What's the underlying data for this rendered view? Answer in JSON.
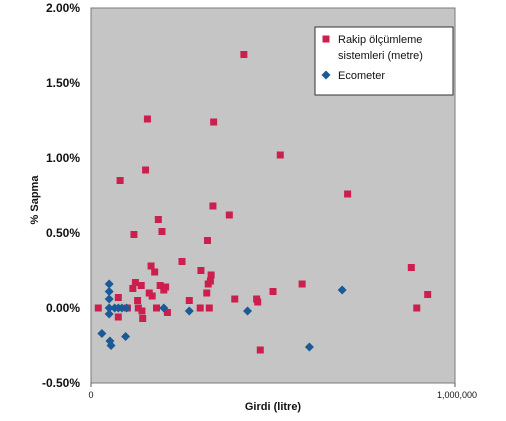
{
  "chart_data": {
    "type": "scatter",
    "title": "",
    "xlabel": "Girdi (litre)",
    "ylabel": "% Sapma",
    "xlim": [
      0,
      1000000
    ],
    "ylim": [
      -0.5,
      2.0
    ],
    "x_ticks": [
      {
        "value": 0,
        "label": "0"
      },
      {
        "value": 1000000,
        "label": "1,000,000"
      }
    ],
    "y_ticks": [
      {
        "value": 2.0,
        "label": "2.00%"
      },
      {
        "value": 1.5,
        "label": "1.50%"
      },
      {
        "value": 1.0,
        "label": "1.00%"
      },
      {
        "value": 0.5,
        "label": "0.50%"
      },
      {
        "value": 0.0,
        "label": "0.00%"
      },
      {
        "value": -0.5,
        "label": "-0.50%"
      }
    ],
    "grid": false,
    "plot_background": "#c5c5c5",
    "legend": {
      "position": "top-right"
    },
    "series": [
      {
        "name": "Rakip ölçümleme sistemleri (metre)",
        "legend_lines": [
          "Rakip ölçümleme",
          "sistemleri (metre)"
        ],
        "marker": "square",
        "color": "#cc1f4d",
        "points": [
          [
            20000,
            0.0
          ],
          [
            75000,
            0.07
          ],
          [
            80000,
            0.85
          ],
          [
            75000,
            -0.06
          ],
          [
            100000,
            0.0
          ],
          [
            115000,
            0.13
          ],
          [
            118000,
            0.49
          ],
          [
            122000,
            0.17
          ],
          [
            128000,
            0.05
          ],
          [
            130000,
            0.0
          ],
          [
            138000,
            0.15
          ],
          [
            140000,
            -0.02
          ],
          [
            142000,
            -0.07
          ],
          [
            150000,
            0.92
          ],
          [
            155000,
            1.26
          ],
          [
            160000,
            0.1
          ],
          [
            165000,
            0.28
          ],
          [
            168000,
            0.08
          ],
          [
            175000,
            0.24
          ],
          [
            180000,
            0.0
          ],
          [
            185000,
            0.59
          ],
          [
            190000,
            0.15
          ],
          [
            195000,
            0.51
          ],
          [
            200000,
            0.12
          ],
          [
            205000,
            0.14
          ],
          [
            210000,
            -0.03
          ],
          [
            250000,
            0.31
          ],
          [
            270000,
            0.05
          ],
          [
            300000,
            0.0
          ],
          [
            302000,
            0.25
          ],
          [
            318000,
            0.1
          ],
          [
            320000,
            0.45
          ],
          [
            322000,
            0.16
          ],
          [
            325000,
            0.0
          ],
          [
            328000,
            0.18
          ],
          [
            330000,
            0.22
          ],
          [
            335000,
            0.68
          ],
          [
            337000,
            1.24
          ],
          [
            380000,
            0.62
          ],
          [
            395000,
            0.06
          ],
          [
            420000,
            1.69
          ],
          [
            455000,
            0.06
          ],
          [
            458000,
            0.04
          ],
          [
            465000,
            -0.28
          ],
          [
            500000,
            0.11
          ],
          [
            520000,
            1.02
          ],
          [
            580000,
            0.16
          ],
          [
            705000,
            0.76
          ],
          [
            880000,
            0.27
          ],
          [
            895000,
            0.0
          ],
          [
            925000,
            0.09
          ]
        ]
      },
      {
        "name": "Ecometer",
        "legend_lines": [
          "Ecometer"
        ],
        "marker": "diamond",
        "color": "#1a5a96",
        "points": [
          [
            30000,
            -0.17
          ],
          [
            50000,
            0.16
          ],
          [
            50000,
            0.11
          ],
          [
            50000,
            0.06
          ],
          [
            50000,
            0.0
          ],
          [
            50000,
            -0.04
          ],
          [
            52000,
            -0.22
          ],
          [
            55000,
            -0.25
          ],
          [
            65000,
            0.0
          ],
          [
            75000,
            0.0
          ],
          [
            85000,
            0.0
          ],
          [
            95000,
            -0.19
          ],
          [
            98000,
            0.0
          ],
          [
            200000,
            0.0
          ],
          [
            270000,
            -0.02
          ],
          [
            430000,
            -0.02
          ],
          [
            600000,
            -0.26
          ],
          [
            690000,
            0.12
          ]
        ]
      }
    ]
  }
}
